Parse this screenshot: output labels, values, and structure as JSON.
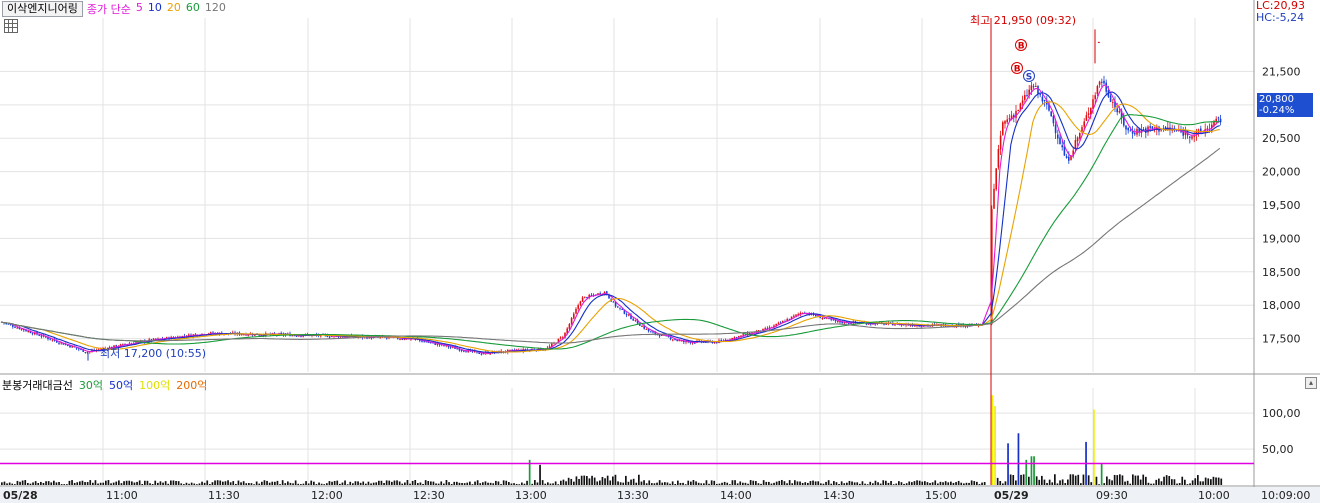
{
  "header": {
    "stock_name": "이삭엔지니어링",
    "ma_prefix": "종가 단순",
    "ma_periods": [
      {
        "label": "5",
        "color": "#e01ad8"
      },
      {
        "label": "10",
        "color": "#1530c8"
      },
      {
        "label": "20",
        "color": "#e8a200"
      },
      {
        "label": "60",
        "color": "#199b3a"
      },
      {
        "label": "120",
        "color": "#777777"
      }
    ]
  },
  "volume_panel": {
    "title": "분봉거래대금선",
    "legend": [
      {
        "label": "30억",
        "color": "#199b3a"
      },
      {
        "label": "50억",
        "color": "#1530c8"
      },
      {
        "label": "100억",
        "color": "#f0f000"
      },
      {
        "label": "200억",
        "color": "#e86a00"
      }
    ]
  },
  "right_info": {
    "lc": "LC:20,93",
    "hc": "HC:-5,24"
  },
  "current_price": {
    "price": "20,800",
    "change": "-0.24%"
  },
  "high_annotation": "최고 21,950 (09:32)",
  "low_annotation": "최저 17,200 (10:55)",
  "trade_markers": [
    "B",
    "B",
    "S"
  ],
  "chart_data": [
    {
      "type": "candlestick",
      "title": "",
      "y_ticks": [
        17500,
        18000,
        18500,
        19000,
        19500,
        20000,
        20500,
        21000,
        21500
      ],
      "y_tick_labels": [
        "17,500",
        "18,000",
        "18,500",
        "19,000",
        "19,500",
        "20,000",
        "20,500",
        "21,000",
        "21,500"
      ],
      "ylim": [
        17000,
        22300
      ],
      "x_tick_labels": [
        "05/28",
        "11:00",
        "11:30",
        "12:00",
        "12:30",
        "13:00",
        "13:30",
        "14:00",
        "14:30",
        "15:00",
        "05/29",
        "09:30",
        "10:00",
        "10:09:00"
      ],
      "price_path": [
        {
          "time": "05/28 10:30",
          "price": 17750
        },
        {
          "time": "10:55",
          "price": 17300
        },
        {
          "time": "11:10",
          "price": 17450
        },
        {
          "time": "11:30",
          "price": 17580
        },
        {
          "time": "12:00",
          "price": 17550
        },
        {
          "time": "12:30",
          "price": 17500
        },
        {
          "time": "12:50",
          "price": 17280
        },
        {
          "time": "13:10",
          "price": 17350
        },
        {
          "time": "13:15",
          "price": 17550
        },
        {
          "time": "13:20",
          "price": 18100
        },
        {
          "time": "13:27",
          "price": 18200
        },
        {
          "time": "13:30",
          "price": 18000
        },
        {
          "time": "13:40",
          "price": 17600
        },
        {
          "time": "13:50",
          "price": 17450
        },
        {
          "time": "14:00",
          "price": 17450
        },
        {
          "time": "14:15",
          "price": 17650
        },
        {
          "time": "14:25",
          "price": 17900
        },
        {
          "time": "14:35",
          "price": 17750
        },
        {
          "time": "15:00",
          "price": 17700
        },
        {
          "time": "15:20",
          "price": 17700
        },
        {
          "time": "05/29 09:00",
          "price": 19500
        },
        {
          "time": "09:03",
          "price": 20700
        },
        {
          "time": "09:08",
          "price": 20950
        },
        {
          "time": "09:12",
          "price": 21300
        },
        {
          "time": "09:17",
          "price": 20900
        },
        {
          "time": "09:22",
          "price": 20150
        },
        {
          "time": "09:27",
          "price": 20700
        },
        {
          "time": "09:32",
          "price": 21400
        },
        {
          "time": "09:40",
          "price": 20600
        },
        {
          "time": "09:50",
          "price": 20650
        },
        {
          "time": "10:00",
          "price": 20550
        },
        {
          "time": "10:05",
          "price": 20700
        },
        {
          "time": "10:09",
          "price": 20800
        }
      ],
      "high": {
        "price": 21950,
        "time": "09:32"
      },
      "low": {
        "price": 17200,
        "time": "10:55"
      }
    },
    {
      "type": "bar",
      "title": "",
      "y_ticks": [
        50,
        100
      ],
      "y_tick_labels": [
        "50,00",
        "100,00"
      ],
      "ylim": [
        0,
        135
      ],
      "reference_line": {
        "value": 30,
        "color": "#e000e0"
      },
      "notable_bars": [
        {
          "time": "13:05",
          "value": 35
        },
        {
          "time": "13:08",
          "value": 28
        },
        {
          "time": "05/29 09:00",
          "value": 125
        },
        {
          "time": "09:01",
          "value": 110
        },
        {
          "time": "09:05",
          "value": 58
        },
        {
          "time": "09:08",
          "value": 72
        },
        {
          "time": "09:10",
          "value": 35
        },
        {
          "time": "09:12",
          "value": 40
        },
        {
          "time": "09:28",
          "value": 60
        },
        {
          "time": "09:30",
          "value": 105
        },
        {
          "time": "09:32",
          "value": 30
        }
      ]
    }
  ]
}
